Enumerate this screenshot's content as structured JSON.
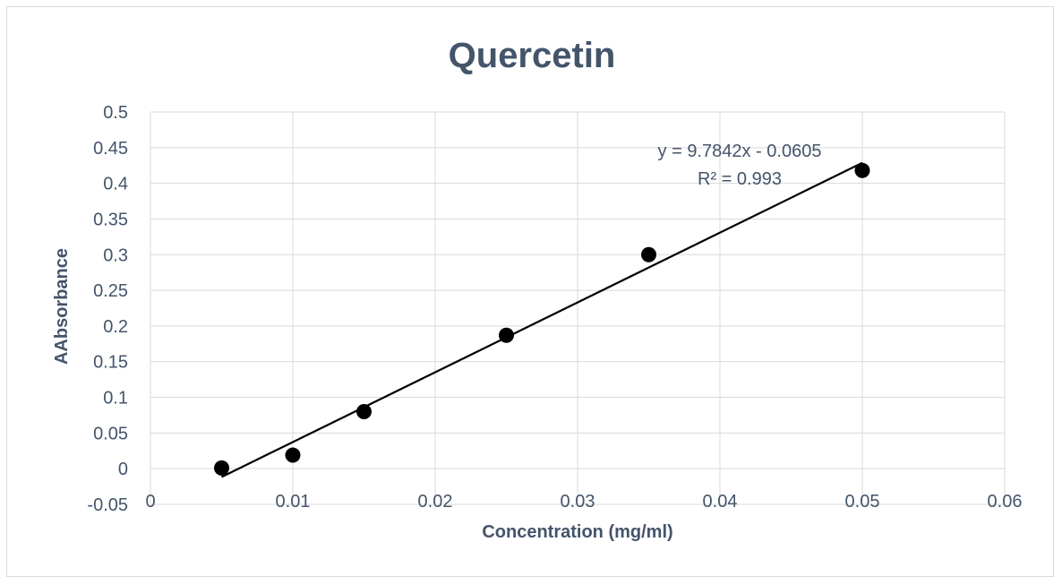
{
  "chart_data": {
    "type": "scatter",
    "title": "Quercetin",
    "xlabel": "Concentration (mg/ml)",
    "ylabel": "AAbsorbance",
    "xlim": [
      0,
      0.06
    ],
    "ylim": [
      -0.05,
      0.5
    ],
    "x_ticks": [
      "0",
      "0.01",
      "0.02",
      "0.03",
      "0.04",
      "0.05",
      "0.06"
    ],
    "y_ticks": [
      "-0.05",
      "0",
      "0.05",
      "0.1",
      "0.15",
      "0.2",
      "0.25",
      "0.3",
      "0.35",
      "0.4",
      "0.45",
      "0.5"
    ],
    "grid": true,
    "points": [
      {
        "x": 0.005,
        "y": 0.001
      },
      {
        "x": 0.01,
        "y": 0.019
      },
      {
        "x": 0.015,
        "y": 0.08
      },
      {
        "x": 0.025,
        "y": 0.187
      },
      {
        "x": 0.035,
        "y": 0.3
      },
      {
        "x": 0.05,
        "y": 0.418
      }
    ],
    "trendline": {
      "slope": 9.7842,
      "intercept": -0.0605,
      "x_range": [
        0.005,
        0.05
      ],
      "equation": "y = 9.7842x - 0.0605",
      "r_squared": "R² = 0.993"
    },
    "colors": {
      "text": "#44546a",
      "grid": "#d9d9d9",
      "marker": "#000000",
      "trendline": "#000000"
    }
  }
}
